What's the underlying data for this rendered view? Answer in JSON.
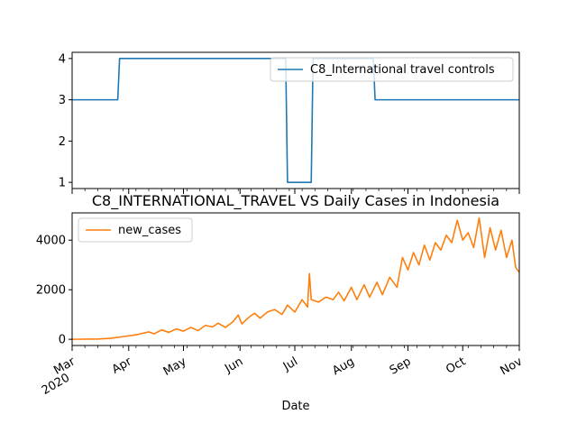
{
  "chart_data": [
    {
      "type": "line",
      "title": "",
      "xlabel": "",
      "ylabel": "",
      "xlim": [
        "2020-03-01",
        "2020-11-01"
      ],
      "ylim": [
        0.85,
        4.15
      ],
      "yticks": [
        1,
        2,
        3,
        4
      ],
      "legend": "top-right",
      "series": [
        {
          "name": "C8_International travel controls",
          "color": "#1f77b4",
          "step": true,
          "points": [
            [
              "2020-03-01",
              3
            ],
            [
              "2020-03-26",
              3
            ],
            [
              "2020-03-27",
              4
            ],
            [
              "2020-06-26",
              4
            ],
            [
              "2020-06-27",
              1
            ],
            [
              "2020-07-10",
              1
            ],
            [
              "2020-07-11",
              4
            ],
            [
              "2020-08-13",
              4
            ],
            [
              "2020-08-14",
              3
            ],
            [
              "2020-11-01",
              3
            ]
          ]
        }
      ]
    },
    {
      "type": "line",
      "title": "C8_INTERNATIONAL_TRAVEL VS Daily Cases in Indonesia",
      "xlabel": "Date",
      "ylabel": "",
      "xlim": [
        "2020-03-01",
        "2020-11-01"
      ],
      "ylim": [
        -250,
        5100
      ],
      "yticks": [
        0,
        2000,
        4000
      ],
      "legend": "top-left",
      "xticks": [
        {
          "date": "2020-03-01",
          "label": "Mar",
          "sublabel": "2020"
        },
        {
          "date": "2020-04-01",
          "label": "Apr"
        },
        {
          "date": "2020-05-01",
          "label": "May"
        },
        {
          "date": "2020-06-01",
          "label": "Jun"
        },
        {
          "date": "2020-07-01",
          "label": "Jul"
        },
        {
          "date": "2020-08-01",
          "label": "Aug"
        },
        {
          "date": "2020-09-01",
          "label": "Sep"
        },
        {
          "date": "2020-10-01",
          "label": "Oct"
        },
        {
          "date": "2020-11-01",
          "label": "Nov"
        }
      ],
      "series": [
        {
          "name": "new_cases",
          "color": "#ff7f0e",
          "points": [
            [
              "2020-03-01",
              0
            ],
            [
              "2020-03-15",
              10
            ],
            [
              "2020-03-22",
              40
            ],
            [
              "2020-03-29",
              110
            ],
            [
              "2020-04-05",
              180
            ],
            [
              "2020-04-12",
              300
            ],
            [
              "2020-04-15",
              220
            ],
            [
              "2020-04-19",
              380
            ],
            [
              "2020-04-23",
              280
            ],
            [
              "2020-04-27",
              420
            ],
            [
              "2020-05-01",
              330
            ],
            [
              "2020-05-05",
              480
            ],
            [
              "2020-05-09",
              350
            ],
            [
              "2020-05-13",
              560
            ],
            [
              "2020-05-17",
              500
            ],
            [
              "2020-05-20",
              650
            ],
            [
              "2020-05-24",
              480
            ],
            [
              "2020-05-28",
              700
            ],
            [
              "2020-05-31",
              980
            ],
            [
              "2020-06-02",
              620
            ],
            [
              "2020-06-06",
              900
            ],
            [
              "2020-06-09",
              1050
            ],
            [
              "2020-06-12",
              850
            ],
            [
              "2020-06-16",
              1100
            ],
            [
              "2020-06-20",
              1200
            ],
            [
              "2020-06-24",
              1000
            ],
            [
              "2020-06-27",
              1380
            ],
            [
              "2020-07-01",
              1100
            ],
            [
              "2020-07-05",
              1600
            ],
            [
              "2020-07-08",
              1300
            ],
            [
              "2020-07-09",
              2650
            ],
            [
              "2020-07-10",
              1600
            ],
            [
              "2020-07-14",
              1500
            ],
            [
              "2020-07-18",
              1700
            ],
            [
              "2020-07-22",
              1600
            ],
            [
              "2020-07-25",
              1900
            ],
            [
              "2020-07-28",
              1550
            ],
            [
              "2020-08-01",
              2100
            ],
            [
              "2020-08-04",
              1600
            ],
            [
              "2020-08-08",
              2200
            ],
            [
              "2020-08-11",
              1700
            ],
            [
              "2020-08-15",
              2300
            ],
            [
              "2020-08-18",
              1800
            ],
            [
              "2020-08-22",
              2500
            ],
            [
              "2020-08-26",
              2100
            ],
            [
              "2020-08-29",
              3300
            ],
            [
              "2020-09-01",
              2800
            ],
            [
              "2020-09-04",
              3500
            ],
            [
              "2020-09-07",
              3000
            ],
            [
              "2020-09-10",
              3800
            ],
            [
              "2020-09-13",
              3200
            ],
            [
              "2020-09-16",
              3900
            ],
            [
              "2020-09-19",
              3600
            ],
            [
              "2020-09-22",
              4200
            ],
            [
              "2020-09-25",
              3900
            ],
            [
              "2020-09-28",
              4800
            ],
            [
              "2020-10-01",
              4000
            ],
            [
              "2020-10-04",
              4300
            ],
            [
              "2020-10-07",
              3700
            ],
            [
              "2020-10-10",
              4900
            ],
            [
              "2020-10-13",
              3300
            ],
            [
              "2020-10-16",
              4500
            ],
            [
              "2020-10-19",
              3600
            ],
            [
              "2020-10-22",
              4400
            ],
            [
              "2020-10-25",
              3300
            ],
            [
              "2020-10-28",
              4000
            ],
            [
              "2020-10-30",
              2900
            ],
            [
              "2020-11-01",
              2700
            ]
          ]
        }
      ]
    }
  ]
}
